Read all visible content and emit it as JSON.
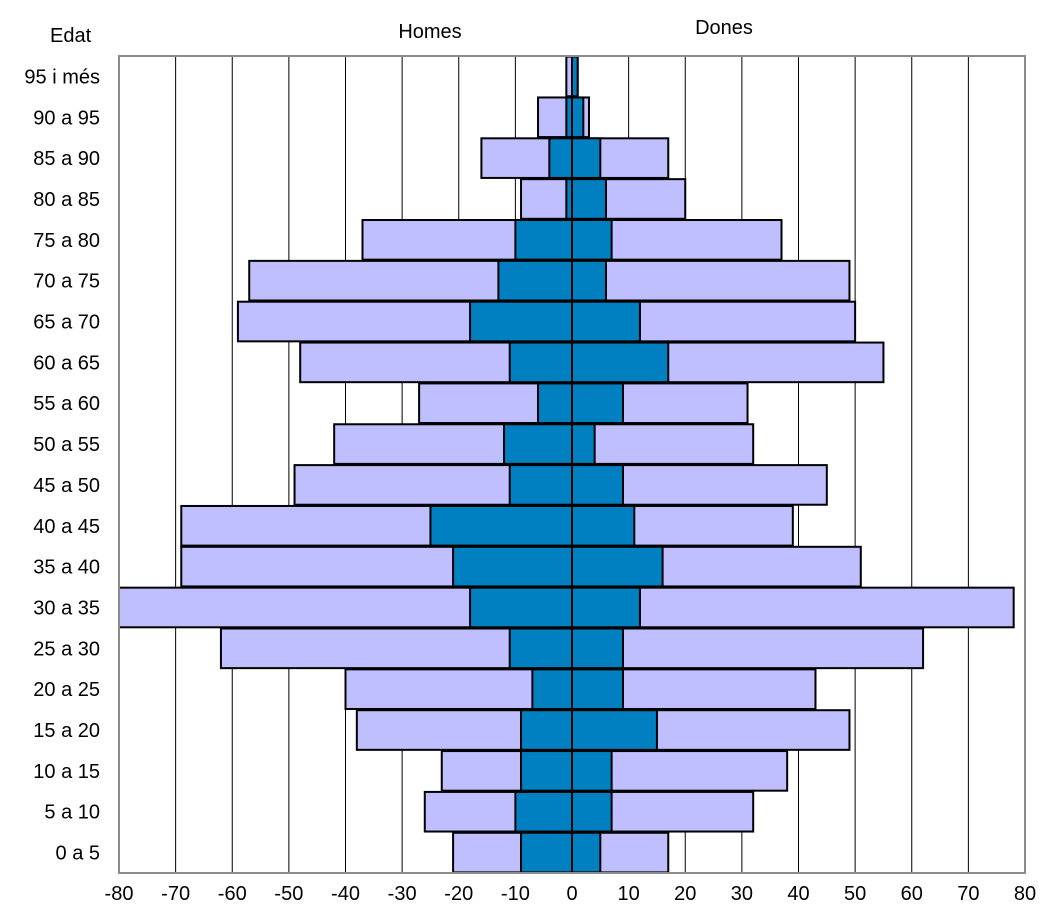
{
  "chart_data": {
    "type": "bar",
    "orientation": "horizontal",
    "layout": "population-pyramid",
    "age_axis_title": "Edat",
    "left_title": "Homes",
    "right_title": "Dones",
    "categories": [
      "0 a 5",
      "5 a 10",
      "10 a 15",
      "15 a 20",
      "20 a 25",
      "25 a 30",
      "30 a 35",
      "35 a 40",
      "40 a 45",
      "45 a 50",
      "50 a 55",
      "55 a 60",
      "60 a 65",
      "65 a 70",
      "70 a 75",
      "75 a 80",
      "80 a 85",
      "85 a 90",
      "90 a 95",
      "95 i més"
    ],
    "series": [
      {
        "group": "Homes",
        "color": "#bfbfff",
        "values": [
          -21,
          -26,
          -23,
          -38,
          -40,
          -62,
          -80,
          -69,
          -69,
          -49,
          -42,
          -27,
          -48,
          -59,
          -57,
          -37,
          -9,
          -16,
          -6,
          -1
        ]
      },
      {
        "group": "Homes",
        "color": "#0080c0",
        "values": [
          -9,
          -10,
          -9,
          -9,
          -7,
          -11,
          -18,
          -21,
          -25,
          -11,
          -12,
          -6,
          -11,
          -18,
          -13,
          -10,
          -1,
          -4,
          -1,
          0
        ]
      },
      {
        "group": "Dones",
        "color": "#bfbfff",
        "values": [
          17,
          32,
          38,
          49,
          43,
          62,
          78,
          51,
          39,
          45,
          32,
          31,
          55,
          50,
          49,
          37,
          20,
          17,
          3,
          1
        ]
      },
      {
        "group": "Dones",
        "color": "#0080c0",
        "values": [
          5,
          7,
          7,
          15,
          9,
          9,
          12,
          16,
          11,
          9,
          4,
          9,
          17,
          12,
          6,
          7,
          6,
          5,
          2,
          1
        ]
      }
    ],
    "xlim": [
      -80,
      80
    ],
    "xticks": [
      "-80",
      "-70",
      "-60",
      "-50",
      "-40",
      "-30",
      "-20",
      "-10",
      "0",
      "10",
      "20",
      "30",
      "40",
      "50",
      "60",
      "70",
      "80"
    ],
    "grid": "vertical"
  }
}
